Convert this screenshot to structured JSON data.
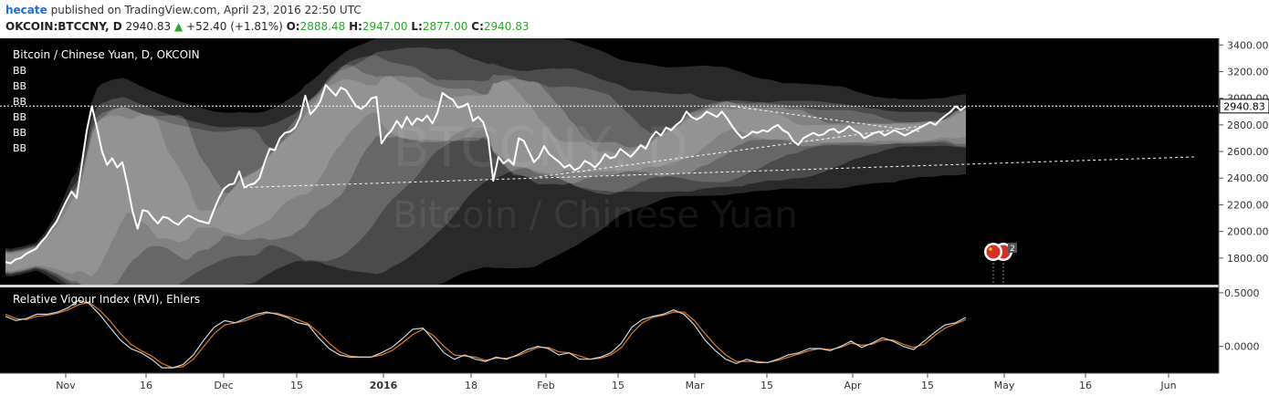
{
  "header": {
    "user": "hecate",
    "published_text": "published on TradingView.com, April 23, 2016 22:50 UTC",
    "symbol": "OKCOIN:BTCCNY, D",
    "last": "2940.83",
    "change_arrow": "▲",
    "change": "+52.40 (+1.81%)",
    "o_label": "O:",
    "o_value": "2888.48",
    "h_label": "H:",
    "h_value": "2947.00",
    "l_label": "L:",
    "l_value": "2877.00",
    "c_label": "C:",
    "c_value": "2940.83"
  },
  "main_pane": {
    "title": "Bitcoin / Chinese Yuan, D, OKCOIN",
    "bb_labels": [
      "BB",
      "BB",
      "BB",
      "BB",
      "BB",
      "BB"
    ],
    "watermark_symbol": "BTCCNY, D",
    "watermark_name": "Bitcoin / Chinese Yuan",
    "price_label": "2940.83",
    "event_count": "2"
  },
  "rvi_pane": {
    "title": "Relative Vigour Index (RVI), Ehlers",
    "y_ticks": [
      "0.5000",
      "0.0000"
    ]
  },
  "colors": {
    "background": "#000000",
    "price_line": "#ffffff",
    "rvi_line": "#c8d6e6",
    "rvi_signal": "#e07a1f",
    "axis_bg": "#ffffff"
  },
  "chart_data": {
    "type": "line",
    "y_ticks": [
      1800,
      2000,
      2200,
      2400,
      2600,
      2800,
      3000,
      3200,
      3400
    ],
    "ylim": [
      1600,
      3450
    ],
    "x_tick_labels": [
      "Nov",
      "16",
      "Dec",
      "15",
      "2016",
      "18",
      "Feb",
      "15",
      "Mar",
      "15",
      "Apr",
      "15",
      "May",
      "16",
      "Jun"
    ],
    "series": [],
    "close": [
      1770,
      1760,
      1790,
      1800,
      1830,
      1850,
      1870,
      1920,
      1960,
      2020,
      2070,
      2150,
      2230,
      2300,
      2250,
      2500,
      2760,
      2940,
      2780,
      2600,
      2500,
      2550,
      2480,
      2520,
      2350,
      2150,
      2020,
      2160,
      2150,
      2100,
      2060,
      2110,
      2100,
      2070,
      2050,
      2090,
      2120,
      2100,
      2080,
      2070,
      2060,
      2160,
      2250,
      2320,
      2350,
      2360,
      2450,
      2330,
      2350,
      2360,
      2400,
      2520,
      2620,
      2610,
      2700,
      2740,
      2750,
      2780,
      2860,
      3020,
      2880,
      2920,
      2980,
      3100,
      3060,
      3020,
      3080,
      3060,
      3000,
      2940,
      2920,
      2950,
      3000,
      3010,
      2660,
      2720,
      2760,
      2830,
      2780,
      2860,
      2800,
      2850,
      2830,
      2870,
      2810,
      2890,
      3040,
      3010,
      2990,
      2930,
      2940,
      2960,
      2830,
      2860,
      2820,
      2700,
      2380,
      2560,
      2510,
      2540,
      2500,
      2700,
      2680,
      2600,
      2520,
      2560,
      2640,
      2580,
      2550,
      2520,
      2480,
      2500,
      2460,
      2480,
      2530,
      2510,
      2480,
      2520,
      2580,
      2550,
      2560,
      2620,
      2590,
      2560,
      2600,
      2650,
      2620,
      2700,
      2750,
      2720,
      2780,
      2760,
      2800,
      2830,
      2900,
      2860,
      2840,
      2860,
      2900,
      2880,
      2860,
      2900,
      2850,
      2790,
      2740,
      2700,
      2720,
      2750,
      2740,
      2760,
      2750,
      2780,
      2800,
      2760,
      2740,
      2680,
      2650,
      2700,
      2720,
      2740,
      2720,
      2730,
      2760,
      2770,
      2740,
      2760,
      2790,
      2760,
      2740,
      2700,
      2720,
      2740,
      2750,
      2720,
      2740,
      2760,
      2740,
      2720,
      2740,
      2760,
      2780,
      2800,
      2820,
      2800,
      2840,
      2870,
      2900,
      2940,
      2910,
      2940
    ],
    "last_close": 2940.83,
    "rvi_ylim": [
      -0.25,
      0.55
    ],
    "rvi_ticks": [
      0.5,
      0.0
    ],
    "rvi": [
      0.28,
      0.24,
      0.26,
      0.3,
      0.3,
      0.32,
      0.36,
      0.43,
      0.4,
      0.3,
      0.18,
      0.06,
      -0.02,
      -0.06,
      -0.12,
      -0.2,
      -0.2,
      -0.17,
      -0.08,
      0.06,
      0.18,
      0.24,
      0.22,
      0.26,
      0.3,
      0.32,
      0.3,
      0.27,
      0.22,
      0.2,
      0.08,
      -0.02,
      -0.08,
      -0.1,
      -0.1,
      -0.1,
      -0.06,
      -0.01,
      0.07,
      0.16,
      0.17,
      0.06,
      -0.06,
      -0.12,
      -0.08,
      -0.12,
      -0.14,
      -0.1,
      -0.12,
      -0.08,
      -0.03,
      0.0,
      -0.02,
      -0.08,
      -0.06,
      -0.12,
      -0.12,
      -0.1,
      -0.06,
      0.03,
      0.18,
      0.25,
      0.28,
      0.3,
      0.34,
      0.3,
      0.2,
      0.06,
      -0.04,
      -0.12,
      -0.16,
      -0.12,
      -0.15,
      -0.15,
      -0.12,
      -0.08,
      -0.06,
      -0.02,
      -0.02,
      -0.04,
      0.0,
      0.05,
      -0.01,
      0.03,
      0.08,
      0.05,
      0.0,
      -0.03,
      0.05,
      0.13,
      0.2,
      0.22,
      0.27
    ],
    "rvi_signal": [
      0.3,
      0.26,
      0.25,
      0.28,
      0.29,
      0.31,
      0.34,
      0.39,
      0.41,
      0.34,
      0.24,
      0.12,
      0.02,
      -0.04,
      -0.09,
      -0.16,
      -0.2,
      -0.19,
      -0.12,
      0.0,
      0.12,
      0.2,
      0.22,
      0.24,
      0.28,
      0.31,
      0.31,
      0.28,
      0.25,
      0.21,
      0.13,
      0.03,
      -0.05,
      -0.09,
      -0.1,
      -0.1,
      -0.08,
      -0.04,
      0.03,
      0.11,
      0.16,
      0.1,
      0.0,
      -0.08,
      -0.09,
      -0.1,
      -0.13,
      -0.11,
      -0.11,
      -0.09,
      -0.05,
      -0.01,
      -0.01,
      -0.05,
      -0.06,
      -0.09,
      -0.12,
      -0.11,
      -0.08,
      -0.01,
      0.12,
      0.22,
      0.27,
      0.29,
      0.32,
      0.32,
      0.24,
      0.12,
      0.01,
      -0.08,
      -0.14,
      -0.14,
      -0.14,
      -0.15,
      -0.13,
      -0.1,
      -0.07,
      -0.04,
      -0.02,
      -0.03,
      -0.01,
      0.03,
      0.01,
      0.02,
      0.06,
      0.06,
      0.02,
      -0.01,
      0.02,
      0.1,
      0.17,
      0.21,
      0.25
    ],
    "grid": false,
    "legend": "none"
  }
}
